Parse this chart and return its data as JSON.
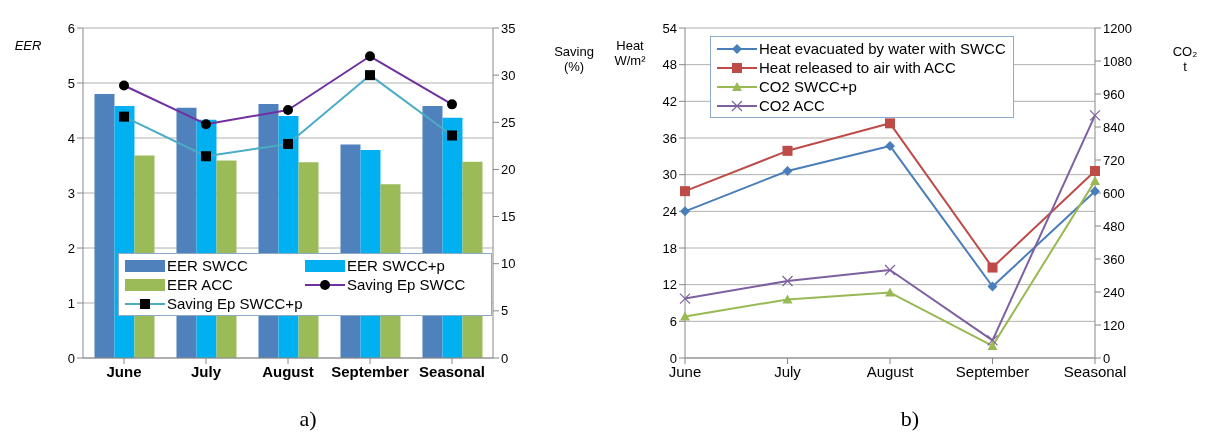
{
  "chart_data": [
    {
      "type": "bar",
      "ylabel": "EER",
      "y2label": "Saving (%)",
      "categories": [
        "June",
        "July",
        "August",
        "September",
        "Seasonal"
      ],
      "ylim": [
        0,
        6
      ],
      "yticks": [
        0,
        1,
        2,
        3,
        4,
        5,
        6
      ],
      "y2lim": [
        0,
        35
      ],
      "y2ticks": [
        0,
        5,
        10,
        15,
        20,
        25,
        30,
        35
      ],
      "grid": "y",
      "legend": "bottom",
      "annotations": [
        "a)"
      ],
      "series": [
        {
          "name": "EER SWCC",
          "color": "#4f81bd",
          "values": [
            4.8,
            4.55,
            4.62,
            3.88,
            4.58
          ]
        },
        {
          "name": "EER SWCC+p",
          "color": "#00b0f0",
          "values": [
            4.58,
            4.33,
            4.4,
            3.78,
            4.37
          ]
        },
        {
          "name": "EER ACC",
          "color": "#9bbb59",
          "values": [
            3.68,
            3.59,
            3.56,
            3.16,
            3.57
          ]
        },
        {
          "name": "Saving Ep SWCC",
          "type": "line",
          "axis": "y2",
          "marker": "circle",
          "color": "#7030a0",
          "values": [
            28.9,
            24.8,
            26.3,
            32,
            26.9
          ]
        },
        {
          "name": "Saving Ep SWCC+p",
          "type": "line",
          "axis": "y2",
          "marker": "square",
          "color": "#4bacc6",
          "values": [
            25.6,
            21.4,
            22.7,
            30,
            23.6
          ]
        }
      ]
    },
    {
      "type": "line",
      "ylabel": "Heat W/m²",
      "y2label": "CO₂ t",
      "categories": [
        "June",
        "July",
        "August",
        "September",
        "Seasonal"
      ],
      "ylim": [
        0,
        54
      ],
      "yticks": [
        0,
        6,
        12,
        18,
        24,
        30,
        36,
        42,
        48,
        54
      ],
      "y2lim": [
        0,
        1200
      ],
      "y2ticks": [
        0,
        120,
        240,
        360,
        480,
        600,
        720,
        840,
        960,
        1080,
        1200
      ],
      "grid": "y",
      "legend": "top left",
      "annotations": [
        "b)"
      ],
      "series": [
        {
          "name": "Heat evacuated by water with SWCC",
          "marker": "diamond",
          "color": "#4a7ebb",
          "values": [
            24,
            30.6,
            34.7,
            11.7,
            27.3
          ]
        },
        {
          "name": "Heat released to air with ACC",
          "marker": "square",
          "color": "#be4b48",
          "values": [
            27.3,
            33.9,
            38.4,
            14.8,
            30.6
          ]
        },
        {
          "name": "CO2 SWCC+p",
          "marker": "triangle",
          "axis": "y2",
          "color": "#98b954",
          "values": [
            151,
            213,
            238,
            44,
            644
          ]
        },
        {
          "name": "CO2 ACC",
          "marker": "cross",
          "axis": "y2",
          "color": "#7d60a0",
          "values": [
            216,
            280,
            320,
            64,
            882
          ]
        }
      ]
    }
  ]
}
